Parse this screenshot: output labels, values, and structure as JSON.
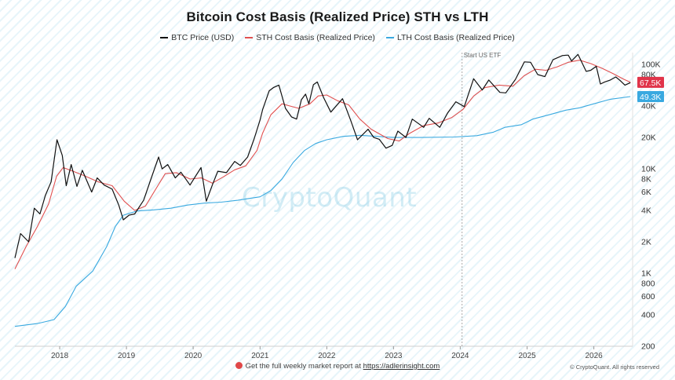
{
  "page": {
    "title": "Bitcoin Cost Basis (Realized Price) STH vs LTH",
    "footer_text": "Get the full weekly market report at",
    "footer_link": "https://adlerinsight.com",
    "copyright": "© CryptoQuant. All rights reserved",
    "watermark": "CryptoQuant"
  },
  "colors": {
    "btc": "#111111",
    "sth": "#e05050",
    "lth": "#39a9e0",
    "sth_badge": "#e0344a",
    "lth_badge": "#39a9e0"
  },
  "chart_data": {
    "type": "line",
    "title": "Bitcoin Cost Basis (Realized Price) STH vs LTH",
    "y_scale": "log",
    "ylim": [
      200,
      130000
    ],
    "xlim": [
      "2017-05-01",
      "2026-08-01"
    ],
    "y_ticks": [
      {
        "value": 100000,
        "label": "100K"
      },
      {
        "value": 80000,
        "label": "80K"
      },
      {
        "value": 40000,
        "label": "40K"
      },
      {
        "value": 20000,
        "label": "20K"
      },
      {
        "value": 10000,
        "label": "10K"
      },
      {
        "value": 8000,
        "label": "8K"
      },
      {
        "value": 6000,
        "label": "6K"
      },
      {
        "value": 4000,
        "label": "4K"
      },
      {
        "value": 2000,
        "label": "2K"
      },
      {
        "value": 1000,
        "label": "1K"
      },
      {
        "value": 800,
        "label": "800"
      },
      {
        "value": 600,
        "label": "600"
      },
      {
        "value": 400,
        "label": "400"
      },
      {
        "value": 200,
        "label": "200"
      }
    ],
    "x_ticks": [
      {
        "value": "2018-01-01",
        "label": "2018"
      },
      {
        "value": "2019-01-01",
        "label": "2019"
      },
      {
        "value": "2020-01-01",
        "label": "2020"
      },
      {
        "value": "2021-01-01",
        "label": "2021"
      },
      {
        "value": "2022-01-01",
        "label": "2022"
      },
      {
        "value": "2023-01-01",
        "label": "2023"
      },
      {
        "value": "2024-01-01",
        "label": "2024"
      },
      {
        "value": "2025-01-01",
        "label": "2025"
      },
      {
        "value": "2026-01-01",
        "label": "2026"
      }
    ],
    "annotation": {
      "date": "2024-01-11",
      "label": "Start US ETF"
    },
    "last_value_badges": [
      {
        "series": "STH Cost Basis (Realized Price)",
        "label": "67.5K",
        "value": 67500
      },
      {
        "series": "LTH Cost Basis (Realized Price)",
        "label": "49.3K",
        "value": 49300
      }
    ],
    "legend_placement": "top-center",
    "series": [
      {
        "name": "BTC Price (USD)",
        "color": "#111111",
        "points": [
          [
            "2017-05-01",
            1400
          ],
          [
            "2017-06-01",
            2400
          ],
          [
            "2017-07-15",
            2000
          ],
          [
            "2017-08-15",
            4200
          ],
          [
            "2017-09-15",
            3700
          ],
          [
            "2017-10-15",
            5600
          ],
          [
            "2017-11-15",
            7500
          ],
          [
            "2017-12-17",
            19000
          ],
          [
            "2018-01-15",
            13500
          ],
          [
            "2018-02-06",
            6900
          ],
          [
            "2018-03-05",
            11000
          ],
          [
            "2018-04-05",
            6800
          ],
          [
            "2018-05-05",
            9700
          ],
          [
            "2018-06-25",
            6000
          ],
          [
            "2018-07-25",
            8200
          ],
          [
            "2018-09-01",
            7000
          ],
          [
            "2018-10-15",
            6400
          ],
          [
            "2018-11-20",
            4500
          ],
          [
            "2018-12-15",
            3250
          ],
          [
            "2019-01-15",
            3600
          ],
          [
            "2019-02-15",
            3700
          ],
          [
            "2019-04-05",
            5000
          ],
          [
            "2019-05-15",
            8000
          ],
          [
            "2019-06-26",
            13000
          ],
          [
            "2019-07-15",
            10000
          ],
          [
            "2019-08-15",
            11000
          ],
          [
            "2019-09-25",
            8200
          ],
          [
            "2019-10-26",
            9300
          ],
          [
            "2019-12-15",
            7000
          ],
          [
            "2020-02-13",
            10300
          ],
          [
            "2020-03-13",
            4900
          ],
          [
            "2020-04-15",
            7000
          ],
          [
            "2020-05-15",
            9500
          ],
          [
            "2020-07-01",
            9200
          ],
          [
            "2020-08-15",
            11800
          ],
          [
            "2020-09-15",
            10800
          ],
          [
            "2020-10-25",
            13000
          ],
          [
            "2020-11-30",
            19500
          ],
          [
            "2020-12-31",
            29000
          ],
          [
            "2021-01-15",
            37000
          ],
          [
            "2021-02-20",
            56000
          ],
          [
            "2021-03-15",
            60000
          ],
          [
            "2021-04-14",
            63500
          ],
          [
            "2021-05-20",
            38000
          ],
          [
            "2021-06-22",
            31500
          ],
          [
            "2021-07-20",
            30000
          ],
          [
            "2021-08-15",
            46000
          ],
          [
            "2021-09-07",
            52000
          ],
          [
            "2021-09-25",
            42000
          ],
          [
            "2021-10-20",
            64000
          ],
          [
            "2021-11-10",
            68000
          ],
          [
            "2021-12-15",
            48000
          ],
          [
            "2022-01-23",
            35000
          ],
          [
            "2022-03-28",
            47000
          ],
          [
            "2022-05-12",
            29000
          ],
          [
            "2022-06-18",
            19000
          ],
          [
            "2022-08-15",
            24000
          ],
          [
            "2022-09-15",
            20000
          ],
          [
            "2022-10-15",
            19200
          ],
          [
            "2022-11-21",
            15800
          ],
          [
            "2022-12-25",
            16800
          ],
          [
            "2023-01-25",
            23000
          ],
          [
            "2023-03-10",
            20000
          ],
          [
            "2023-04-14",
            30000
          ],
          [
            "2023-06-15",
            25000
          ],
          [
            "2023-07-15",
            30500
          ],
          [
            "2023-09-11",
            25000
          ],
          [
            "2023-10-25",
            34500
          ],
          [
            "2023-12-08",
            44000
          ],
          [
            "2024-01-23",
            39500
          ],
          [
            "2024-03-14",
            73000
          ],
          [
            "2024-05-01",
            57000
          ],
          [
            "2024-06-05",
            71000
          ],
          [
            "2024-08-05",
            54000
          ],
          [
            "2024-09-06",
            53500
          ],
          [
            "2024-10-29",
            72000
          ],
          [
            "2024-12-17",
            106000
          ],
          [
            "2025-01-20",
            105000
          ],
          [
            "2025-02-28",
            80000
          ],
          [
            "2025-04-08",
            76500
          ],
          [
            "2025-05-22",
            111000
          ],
          [
            "2025-07-14",
            122000
          ],
          [
            "2025-08-14",
            123000
          ],
          [
            "2025-09-01",
            108000
          ],
          [
            "2025-10-06",
            125000
          ],
          [
            "2025-11-20",
            86000
          ],
          [
            "2025-12-15",
            88000
          ],
          [
            "2026-01-14",
            96000
          ],
          [
            "2026-02-06",
            65000
          ],
          [
            "2026-03-01",
            68000
          ],
          [
            "2026-04-01",
            71000
          ],
          [
            "2026-05-01",
            76000
          ],
          [
            "2026-05-25",
            70000
          ],
          [
            "2026-06-20",
            63500
          ],
          [
            "2026-07-20",
            67000
          ]
        ]
      },
      {
        "name": "STH Cost Basis (Realized Price)",
        "color": "#e05050",
        "points": [
          [
            "2017-05-01",
            1100
          ],
          [
            "2017-07-01",
            1800
          ],
          [
            "2017-09-01",
            2800
          ],
          [
            "2017-11-01",
            4600
          ],
          [
            "2017-12-15",
            8500
          ],
          [
            "2018-01-20",
            10300
          ],
          [
            "2018-03-15",
            9500
          ],
          [
            "2018-05-15",
            8600
          ],
          [
            "2018-08-01",
            7500
          ],
          [
            "2018-10-15",
            6900
          ],
          [
            "2018-12-20",
            4900
          ],
          [
            "2019-02-15",
            4000
          ],
          [
            "2019-04-15",
            4400
          ],
          [
            "2019-06-15",
            6600
          ],
          [
            "2019-08-01",
            9000
          ],
          [
            "2019-10-01",
            9200
          ],
          [
            "2019-12-15",
            8000
          ],
          [
            "2020-02-15",
            8200
          ],
          [
            "2020-04-15",
            7300
          ],
          [
            "2020-06-15",
            8400
          ],
          [
            "2020-08-15",
            9800
          ],
          [
            "2020-10-15",
            10700
          ],
          [
            "2020-12-15",
            15000
          ],
          [
            "2021-01-15",
            22000
          ],
          [
            "2021-03-01",
            33000
          ],
          [
            "2021-05-01",
            42000
          ],
          [
            "2021-06-15",
            40000
          ],
          [
            "2021-08-01",
            38000
          ],
          [
            "2021-10-01",
            42000
          ],
          [
            "2021-11-15",
            50000
          ],
          [
            "2022-01-01",
            51000
          ],
          [
            "2022-03-01",
            45000
          ],
          [
            "2022-05-01",
            41000
          ],
          [
            "2022-07-01",
            30000
          ],
          [
            "2022-09-01",
            24000
          ],
          [
            "2022-12-01",
            19500
          ],
          [
            "2023-02-01",
            18500
          ],
          [
            "2023-04-01",
            22000
          ],
          [
            "2023-06-15",
            26000
          ],
          [
            "2023-09-01",
            27500
          ],
          [
            "2023-11-15",
            31000
          ],
          [
            "2024-01-15",
            37000
          ],
          [
            "2024-03-15",
            50000
          ],
          [
            "2024-05-15",
            60000
          ],
          [
            "2024-08-01",
            63500
          ],
          [
            "2024-10-15",
            62000
          ],
          [
            "2024-12-15",
            78000
          ],
          [
            "2025-02-15",
            90000
          ],
          [
            "2025-04-15",
            88000
          ],
          [
            "2025-06-15",
            95000
          ],
          [
            "2025-08-15",
            105000
          ],
          [
            "2025-10-15",
            110000
          ],
          [
            "2025-12-15",
            102000
          ],
          [
            "2026-02-15",
            92000
          ],
          [
            "2026-04-15",
            82000
          ],
          [
            "2026-06-15",
            72000
          ],
          [
            "2026-07-20",
            67500
          ]
        ]
      },
      {
        "name": "LTH Cost Basis (Realized Price)",
        "color": "#39a9e0",
        "points": [
          [
            "2017-05-01",
            310
          ],
          [
            "2017-09-01",
            330
          ],
          [
            "2017-12-01",
            360
          ],
          [
            "2018-02-01",
            480
          ],
          [
            "2018-04-01",
            750
          ],
          [
            "2018-07-01",
            1050
          ],
          [
            "2018-09-15",
            1800
          ],
          [
            "2018-11-01",
            2800
          ],
          [
            "2018-12-15",
            3600
          ],
          [
            "2019-03-01",
            3950
          ],
          [
            "2019-06-01",
            4050
          ],
          [
            "2019-09-01",
            4200
          ],
          [
            "2019-12-01",
            4500
          ],
          [
            "2020-03-01",
            4700
          ],
          [
            "2020-06-01",
            4800
          ],
          [
            "2020-09-01",
            5000
          ],
          [
            "2020-11-15",
            5250
          ],
          [
            "2021-01-01",
            5400
          ],
          [
            "2021-03-01",
            6200
          ],
          [
            "2021-05-01",
            8000
          ],
          [
            "2021-07-01",
            11500
          ],
          [
            "2021-09-01",
            15000
          ],
          [
            "2021-11-01",
            17500
          ],
          [
            "2022-01-01",
            19000
          ],
          [
            "2022-04-01",
            20500
          ],
          [
            "2022-07-01",
            21000
          ],
          [
            "2022-10-01",
            20500
          ],
          [
            "2023-01-01",
            20000
          ],
          [
            "2023-06-01",
            20000
          ],
          [
            "2023-12-01",
            20200
          ],
          [
            "2024-04-01",
            20800
          ],
          [
            "2024-07-01",
            22500
          ],
          [
            "2024-09-01",
            25000
          ],
          [
            "2024-12-01",
            26500
          ],
          [
            "2025-02-01",
            30000
          ],
          [
            "2025-05-01",
            33000
          ],
          [
            "2025-08-01",
            36500
          ],
          [
            "2025-10-15",
            38500
          ],
          [
            "2026-01-01",
            42000
          ],
          [
            "2026-04-01",
            46500
          ],
          [
            "2026-07-20",
            49300
          ]
        ]
      }
    ]
  }
}
